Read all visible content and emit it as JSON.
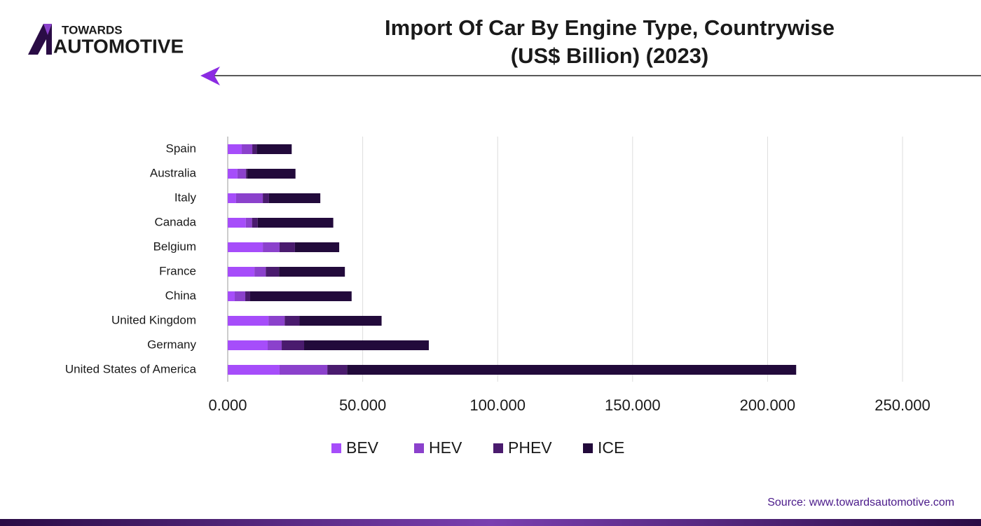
{
  "logo": {
    "top": "TOWARDS",
    "bottom": "AUTOMOTIVE"
  },
  "source": "Source: www.towardsautomotive.com",
  "chart_data": {
    "type": "stacked-barh",
    "title": [
      "Import Of Car By Engine Type, Countrywise",
      "(US$ Billion) (2023)"
    ],
    "categories": [
      "Spain",
      "Australia",
      "Italy",
      "Canada",
      "Belgium",
      "France",
      "China",
      "United Kingdom",
      "Germany",
      "United States of America"
    ],
    "series": [
      {
        "name": "BEV",
        "color": "#a64dfa",
        "values": [
          5.2,
          3.6,
          3.1,
          6.7,
          13.0,
          9.9,
          2.6,
          15.1,
          14.8,
          19.2
        ]
      },
      {
        "name": "HEV",
        "color": "#8b41cc",
        "values": [
          3.9,
          3.1,
          9.9,
          2.3,
          6.2,
          4.2,
          3.9,
          6.0,
          5.2,
          17.7
        ]
      },
      {
        "name": "PHEV",
        "color": "#4a1b6e",
        "values": [
          1.6,
          0.5,
          2.3,
          2.1,
          5.7,
          4.9,
          1.8,
          5.5,
          8.3,
          7.3
        ]
      },
      {
        "name": "ICE",
        "color": "#220a3b",
        "values": [
          13.0,
          17.9,
          19.0,
          28.0,
          16.4,
          24.4,
          37.6,
          30.4,
          46.2,
          166.4
        ]
      }
    ],
    "xlim": [
      0,
      250
    ],
    "xticks": [
      {
        "value": 0,
        "label": "0.000"
      },
      {
        "value": 50,
        "label": "50.000"
      },
      {
        "value": 100,
        "label": "100.000"
      },
      {
        "value": 150,
        "label": "150.000"
      },
      {
        "value": 200,
        "label": "200.000"
      },
      {
        "value": 250,
        "label": "250.000"
      }
    ],
    "grid": true,
    "legend": "bottom"
  }
}
